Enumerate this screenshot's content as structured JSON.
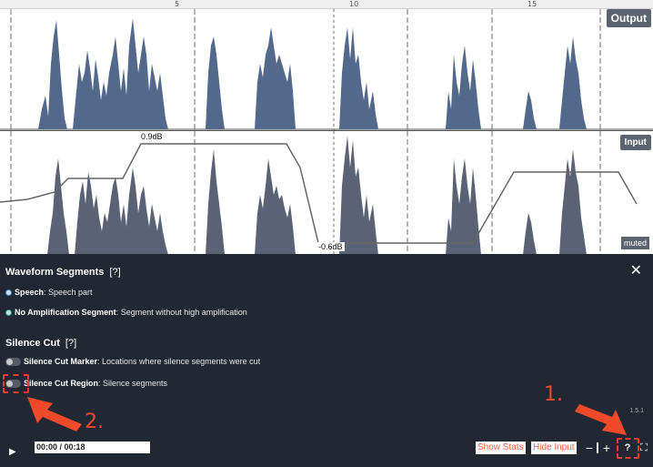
{
  "ruler": {
    "ticks": [
      "5",
      "10",
      "15"
    ]
  },
  "tracks": {
    "output_label": "Output",
    "input_label": "Input",
    "muted_label": "muted",
    "gain_high": "0.9dB",
    "gain_low": "-0.6dB"
  },
  "panel": {
    "waveform_title": "Waveform Segments",
    "waveform_help": "[?]",
    "speech_label": "Speech",
    "speech_desc": ": Speech part",
    "noamp_label": "No Amplification Segment",
    "noamp_desc": ": Segment without high amplification",
    "silence_title": "Silence Cut",
    "silence_help": "[?]",
    "marker_label": "Silence Cut Marker",
    "marker_desc": ": Locations where silence segments were cut",
    "region_label": "Silence Cut Region",
    "region_desc": ": Silence segments",
    "close_glyph": "✕",
    "version": "1.5.1"
  },
  "controls": {
    "play_glyph": "▶",
    "time": "00:00 / 00:18",
    "show_stats": "Show Stats",
    "hide_input": "Hide Input",
    "zoom_out": "−",
    "zoom_in": "+",
    "help": "?",
    "fullscreen": "⛶"
  },
  "annotations": {
    "step1": "1.",
    "step2": "2."
  },
  "colors": {
    "output_wave": "#52698c",
    "input_wave": "#5a6275",
    "panel_bg": "#222833",
    "accent_red": "#e8402a",
    "speech_dot": "#4a8ccf",
    "noamp_dot": "#2f9e8f"
  }
}
